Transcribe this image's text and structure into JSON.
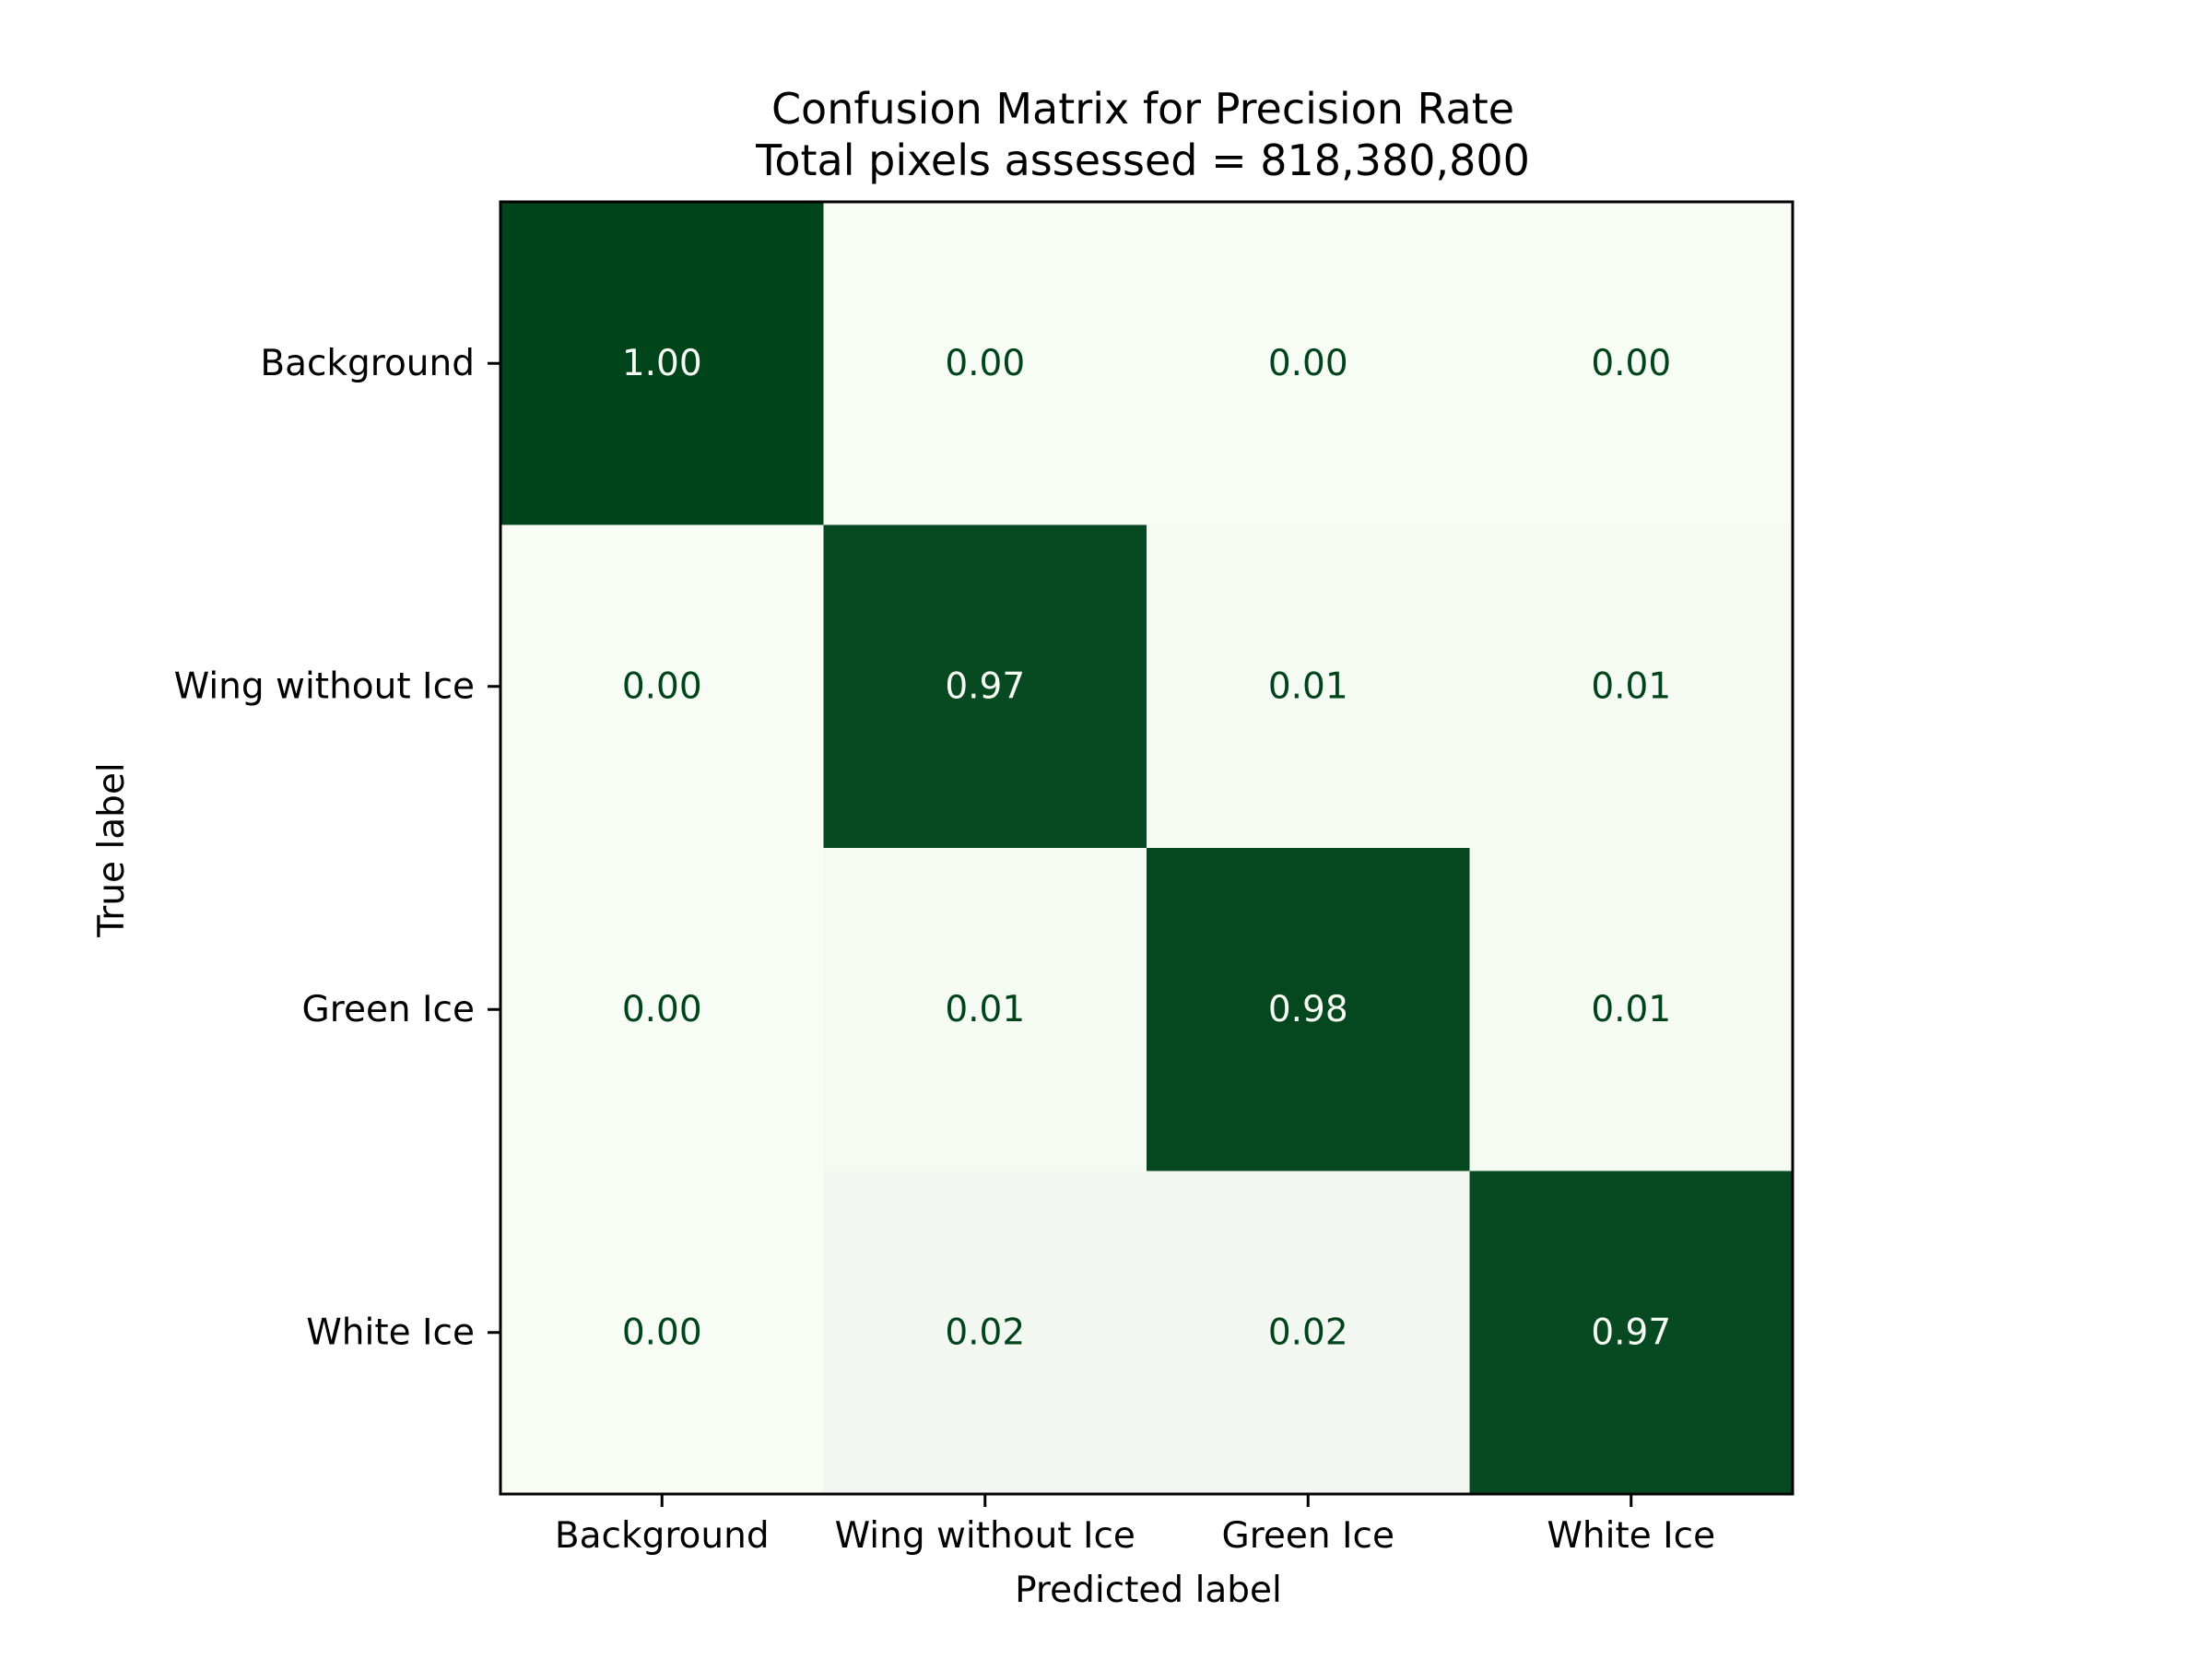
{
  "chart_data": {
    "type": "heatmap",
    "title": "Confusion Matrix for Precision Rate",
    "subtitle": "Total pixels assessed = 818,380,800",
    "xlabel": "Predicted label",
    "ylabel": "True label",
    "x_categories": [
      "Background",
      "Wing without Ice",
      "Green Ice",
      "White Ice"
    ],
    "y_categories": [
      "Background",
      "Wing without Ice",
      "Green Ice",
      "White Ice"
    ],
    "values": [
      [
        1.0,
        0.0,
        0.0,
        0.0
      ],
      [
        0.0,
        0.97,
        0.01,
        0.01
      ],
      [
        0.0,
        0.01,
        0.98,
        0.01
      ],
      [
        0.0,
        0.02,
        0.02,
        0.97
      ]
    ],
    "cell_labels": [
      [
        "1.00",
        "0.00",
        "0.00",
        "0.00"
      ],
      [
        "0.00",
        "0.97",
        "0.01",
        "0.01"
      ],
      [
        "0.00",
        "0.01",
        "0.98",
        "0.01"
      ],
      [
        "0.00",
        "0.02",
        "0.02",
        "0.97"
      ]
    ],
    "colormap": "Greens",
    "colors": {
      "low": "#f7fcf5",
      "high": "#00441b",
      "text_dark_cell": "#f7fcf5",
      "text_light_cell": "#00441b"
    },
    "colorbar": false,
    "grid": false
  }
}
